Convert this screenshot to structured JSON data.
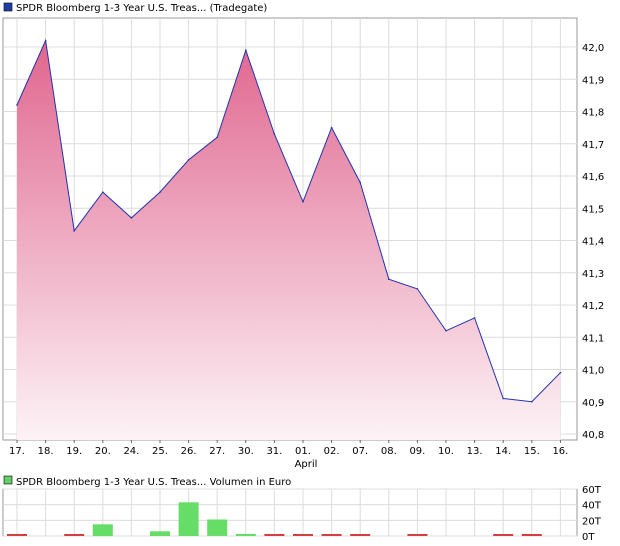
{
  "price_legend": {
    "text": "SPDR Bloomberg 1-3 Year U.S. Treas...  (Tradegate)",
    "color": "#1f3fa8"
  },
  "volume_legend": {
    "text": "SPDR Bloomberg 1-3 Year U.S. Treas...  Volumen in Euro",
    "color": "#66cc66"
  },
  "month_label": "April",
  "colors": {
    "price_line": "#2233aa",
    "fill_top": "#e0668e",
    "fill_bottom": "#fdf3f7",
    "vol_up": "#66dd66",
    "vol_down": "#d04040",
    "grid": "#dcdcdc"
  },
  "chart_data": [
    {
      "type": "area",
      "categories": [
        "17.",
        "18.",
        "19.",
        "20.",
        "24.",
        "25.",
        "26.",
        "27.",
        "30.",
        "31.",
        "01.",
        "02.",
        "07.",
        "08.",
        "09.",
        "10.",
        "13.",
        "14.",
        "15.",
        "16."
      ],
      "series": [
        {
          "name": "SPDR Bloomberg 1-3 Year U.S. Treas... (Tradegate)",
          "values": [
            41.82,
            42.02,
            41.43,
            41.55,
            41.47,
            41.55,
            41.65,
            41.72,
            41.99,
            41.73,
            41.52,
            41.75,
            41.58,
            41.28,
            41.25,
            41.12,
            41.16,
            40.91,
            40.9,
            40.99
          ]
        }
      ],
      "yticks": [
        "42,0",
        "41,9",
        "41,8",
        "41,7",
        "41,6",
        "41,5",
        "41,4",
        "41,3",
        "41,2",
        "41,1",
        "41,0",
        "40,9",
        "40,8"
      ],
      "ylim": [
        40.8,
        42.05
      ],
      "grid": true
    },
    {
      "type": "bar",
      "categories": [
        "17.",
        "18.",
        "19.",
        "20.",
        "24.",
        "25.",
        "26.",
        "27.",
        "30.",
        "31.",
        "01.",
        "02.",
        "07.",
        "08.",
        "09.",
        "10.",
        "13.",
        "14.",
        "15.",
        "16."
      ],
      "series": [
        {
          "name": "SPDR Bloomberg 1-3 Year U.S. Treas... Volumen in Euro",
          "values": [
            1,
            0,
            1,
            15,
            0,
            6,
            43,
            21,
            1,
            1,
            1,
            1,
            1,
            0,
            1,
            0,
            0,
            2,
            2,
            0
          ],
          "direction": [
            "down",
            "none",
            "down",
            "up",
            "none",
            "up",
            "up",
            "up",
            "up",
            "down",
            "down",
            "down",
            "down",
            "none",
            "down",
            "none",
            "none",
            "down",
            "down",
            "none"
          ]
        }
      ],
      "yticks": [
        "60T",
        "40T",
        "20T",
        "0T"
      ],
      "ylim": [
        0,
        60
      ],
      "grid": true
    }
  ]
}
